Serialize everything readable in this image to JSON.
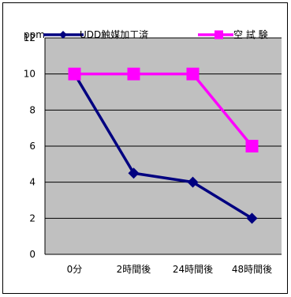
{
  "chart_data": {
    "type": "line",
    "categories": [
      "0分",
      "2時間後",
      "24時間後",
      "48時間後"
    ],
    "ylabel": "ppm",
    "ylim": [
      0,
      12
    ],
    "yticks": [
      0,
      2,
      4,
      6,
      8,
      10,
      12
    ],
    "grid": true,
    "legend_position": "top",
    "series": [
      {
        "name": "UDD触媒加工済",
        "values": [
          10,
          4.5,
          4,
          2
        ],
        "color": "#000080",
        "marker": "diamond"
      },
      {
        "name": "空 試 験",
        "values": [
          10,
          10,
          10,
          6
        ],
        "color": "#ff00ff",
        "marker": "square"
      }
    ],
    "plot_background": "#c0c0c0"
  }
}
